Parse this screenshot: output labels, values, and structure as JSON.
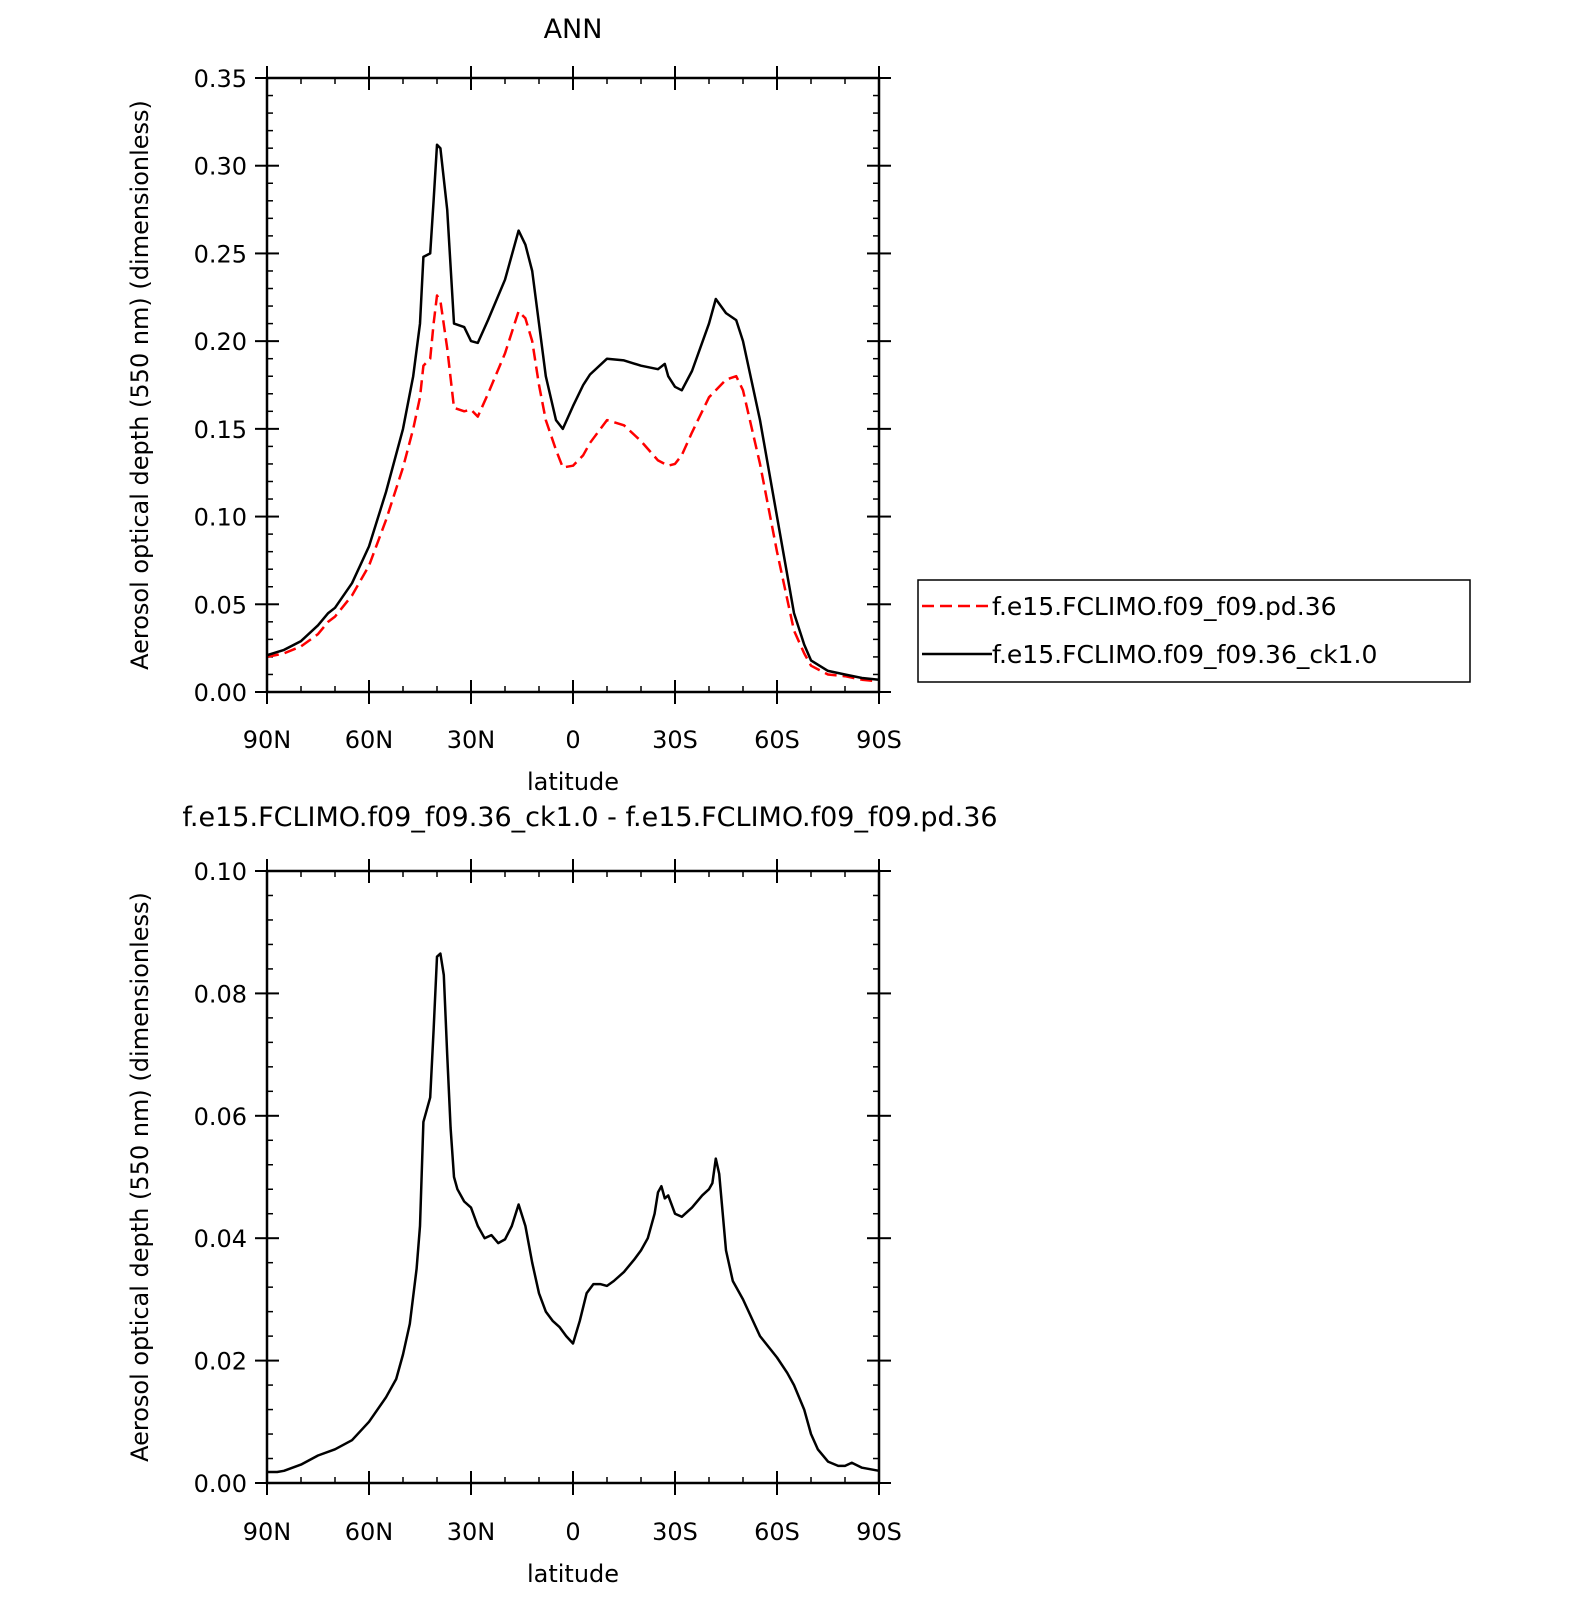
{
  "chart_data": [
    {
      "type": "line",
      "title": "ANN",
      "xlabel": "latitude",
      "ylabel": "Aerosol optical depth (550 nm) (dimensionless)",
      "xlim": [
        90,
        -90
      ],
      "ylim": [
        0,
        0.35
      ],
      "x_ticks": [
        90,
        60,
        30,
        0,
        -30,
        -60,
        -90
      ],
      "x_tick_labels": [
        "90N",
        "60N",
        "30N",
        "0",
        "30S",
        "60S",
        "90S"
      ],
      "y_ticks": [
        0,
        0.05,
        0.1,
        0.15,
        0.2,
        0.25,
        0.3,
        0.35
      ],
      "y_tick_labels": [
        "0.00",
        "0.05",
        "0.10",
        "0.15",
        "0.20",
        "0.25",
        "0.30",
        "0.35"
      ],
      "legend_placement": "right",
      "grid": false,
      "series": [
        {
          "name": "f.e15.FCLIMO.f09_f09.pd.36",
          "color": "#ff0000",
          "dash": "dashed",
          "x": [
            90,
            85,
            80,
            75,
            72,
            70,
            65,
            60,
            55,
            50,
            47,
            45,
            44,
            42,
            41,
            40,
            39,
            37,
            35,
            32,
            30,
            28,
            25,
            20,
            16,
            14,
            12,
            10,
            8,
            5,
            3,
            0,
            -3,
            -5,
            -10,
            -15,
            -20,
            -25,
            -28,
            -30,
            -32,
            -35,
            -40,
            -45,
            -48,
            -50,
            -55,
            -60,
            -65,
            -68,
            -70,
            -75,
            -80,
            -85,
            -90
          ],
          "values": [
            0.02,
            0.022,
            0.026,
            0.033,
            0.04,
            0.043,
            0.055,
            0.072,
            0.098,
            0.128,
            0.15,
            0.168,
            0.186,
            0.19,
            0.21,
            0.226,
            0.223,
            0.196,
            0.162,
            0.16,
            0.161,
            0.157,
            0.17,
            0.193,
            0.217,
            0.213,
            0.2,
            0.175,
            0.155,
            0.138,
            0.128,
            0.129,
            0.135,
            0.142,
            0.155,
            0.152,
            0.143,
            0.132,
            0.129,
            0.13,
            0.135,
            0.148,
            0.168,
            0.178,
            0.18,
            0.172,
            0.13,
            0.08,
            0.035,
            0.022,
            0.015,
            0.01,
            0.009,
            0.007,
            0.006
          ]
        },
        {
          "name": "f.e15.FCLIMO.f09_f09.36_ck1.0",
          "color": "#000000",
          "dash": "solid",
          "x": [
            90,
            85,
            80,
            75,
            72,
            70,
            65,
            60,
            55,
            50,
            47,
            45,
            44,
            42,
            41,
            40,
            39,
            37,
            35,
            32,
            30,
            28,
            25,
            20,
            16,
            14,
            12,
            10,
            8,
            5,
            3,
            0,
            -3,
            -5,
            -10,
            -15,
            -20,
            -25,
            -27,
            -28,
            -30,
            -32,
            -35,
            -40,
            -42,
            -45,
            -48,
            -50,
            -55,
            -60,
            -65,
            -68,
            -70,
            -75,
            -80,
            -85,
            -90
          ],
          "values": [
            0.021,
            0.024,
            0.029,
            0.038,
            0.045,
            0.048,
            0.062,
            0.083,
            0.114,
            0.15,
            0.18,
            0.21,
            0.248,
            0.25,
            0.28,
            0.312,
            0.31,
            0.275,
            0.21,
            0.208,
            0.2,
            0.199,
            0.212,
            0.235,
            0.263,
            0.255,
            0.24,
            0.21,
            0.18,
            0.155,
            0.15,
            0.163,
            0.175,
            0.181,
            0.19,
            0.189,
            0.186,
            0.184,
            0.187,
            0.18,
            0.174,
            0.172,
            0.183,
            0.21,
            0.224,
            0.216,
            0.212,
            0.2,
            0.155,
            0.1,
            0.045,
            0.027,
            0.018,
            0.012,
            0.01,
            0.008,
            0.007
          ]
        }
      ]
    },
    {
      "type": "line",
      "title": "f.e15.FCLIMO.f09_f09.36_ck1.0 - f.e15.FCLIMO.f09_f09.pd.36",
      "xlabel": "latitude",
      "ylabel": "Aerosol optical depth (550 nm) (dimensionless)",
      "xlim": [
        90,
        -90
      ],
      "ylim": [
        0,
        0.1
      ],
      "x_ticks": [
        90,
        60,
        30,
        0,
        -30,
        -60,
        -90
      ],
      "x_tick_labels": [
        "90N",
        "60N",
        "30N",
        "0",
        "30S",
        "60S",
        "90S"
      ],
      "y_ticks": [
        0,
        0.02,
        0.04,
        0.06,
        0.08,
        0.1
      ],
      "y_tick_labels": [
        "0.00",
        "0.02",
        "0.04",
        "0.06",
        "0.08",
        "0.10"
      ],
      "grid": false,
      "series": [
        {
          "color": "#000000",
          "dash": "solid",
          "x": [
            90,
            87,
            85,
            80,
            75,
            70,
            65,
            60,
            55,
            52,
            50,
            48,
            46,
            45,
            44,
            43,
            42,
            41,
            40,
            39,
            38,
            37,
            36,
            35,
            34,
            32,
            30,
            28,
            26,
            24,
            22,
            20,
            18,
            16,
            14,
            12,
            10,
            8,
            6,
            4,
            2,
            0,
            -2,
            -4,
            -6,
            -8,
            -10,
            -12,
            -15,
            -18,
            -20,
            -22,
            -24,
            -25,
            -26,
            -27,
            -28,
            -30,
            -32,
            -35,
            -38,
            -40,
            -41,
            -42,
            -43,
            -45,
            -47,
            -50,
            -55,
            -60,
            -63,
            -65,
            -68,
            -70,
            -72,
            -75,
            -78,
            -80,
            -82,
            -85,
            -90
          ],
          "values": [
            0.0018,
            0.0018,
            0.002,
            0.003,
            0.0045,
            0.0055,
            0.007,
            0.01,
            0.014,
            0.017,
            0.021,
            0.026,
            0.035,
            0.042,
            0.059,
            0.061,
            0.063,
            0.074,
            0.086,
            0.0865,
            0.083,
            0.07,
            0.058,
            0.05,
            0.048,
            0.046,
            0.045,
            0.042,
            0.04,
            0.0405,
            0.0392,
            0.0398,
            0.042,
            0.0455,
            0.042,
            0.036,
            0.031,
            0.028,
            0.0265,
            0.0255,
            0.024,
            0.0228,
            0.0265,
            0.031,
            0.0325,
            0.0325,
            0.0322,
            0.033,
            0.0345,
            0.0365,
            0.038,
            0.04,
            0.044,
            0.0475,
            0.0485,
            0.0465,
            0.047,
            0.044,
            0.0435,
            0.045,
            0.047,
            0.048,
            0.049,
            0.053,
            0.0505,
            0.038,
            0.033,
            0.03,
            0.024,
            0.0205,
            0.018,
            0.016,
            0.012,
            0.008,
            0.0055,
            0.0035,
            0.0028,
            0.0028,
            0.0033,
            0.0025,
            0.002
          ]
        }
      ]
    }
  ]
}
